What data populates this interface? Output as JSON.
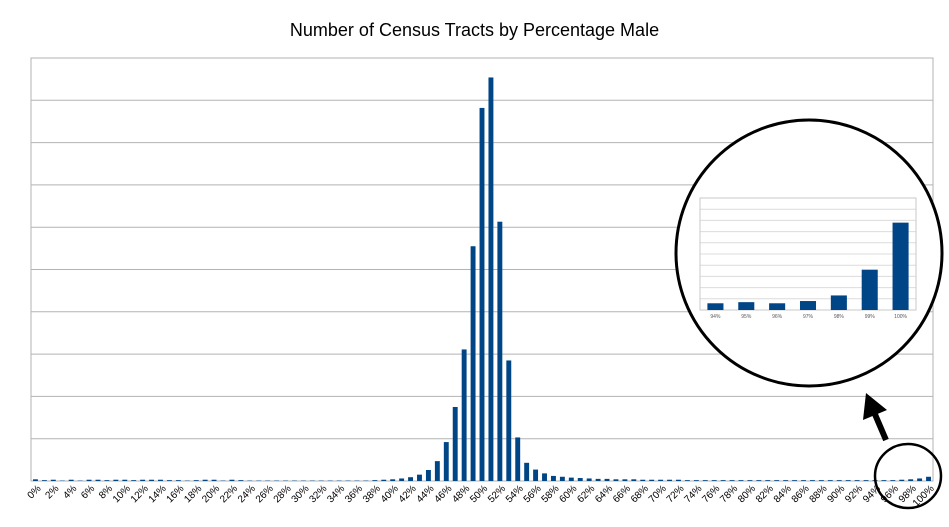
{
  "chart_data": {
    "type": "bar",
    "title": "Number of Census Tracts by Percentage Male",
    "xlabel": "",
    "ylabel": "",
    "grid": true,
    "legend": "none",
    "bar_color": "#004586",
    "ylim": [
      0,
      10
    ],
    "categories": [
      "0%",
      "1%",
      "2%",
      "3%",
      "4%",
      "5%",
      "6%",
      "7%",
      "8%",
      "9%",
      "10%",
      "11%",
      "12%",
      "13%",
      "14%",
      "15%",
      "16%",
      "17%",
      "18%",
      "19%",
      "20%",
      "21%",
      "22%",
      "23%",
      "24%",
      "25%",
      "26%",
      "27%",
      "28%",
      "29%",
      "30%",
      "31%",
      "32%",
      "33%",
      "34%",
      "35%",
      "36%",
      "37%",
      "38%",
      "39%",
      "40%",
      "41%",
      "42%",
      "43%",
      "44%",
      "45%",
      "46%",
      "47%",
      "48%",
      "49%",
      "50%",
      "51%",
      "52%",
      "53%",
      "54%",
      "55%",
      "56%",
      "57%",
      "58%",
      "59%",
      "60%",
      "61%",
      "62%",
      "63%",
      "64%",
      "65%",
      "66%",
      "67%",
      "68%",
      "69%",
      "70%",
      "71%",
      "72%",
      "73%",
      "74%",
      "75%",
      "76%",
      "77%",
      "78%",
      "79%",
      "80%",
      "81%",
      "82%",
      "83%",
      "84%",
      "85%",
      "86%",
      "87%",
      "88%",
      "89%",
      "90%",
      "91%",
      "92%",
      "93%",
      "94%",
      "95%",
      "96%",
      "97%",
      "98%",
      "99%",
      "100%"
    ],
    "tick_labels": [
      "0%",
      "2%",
      "4%",
      "6%",
      "8%",
      "10%",
      "12%",
      "14%",
      "16%",
      "18%",
      "20%",
      "22%",
      "24%",
      "26%",
      "28%",
      "30%",
      "32%",
      "34%",
      "36%",
      "38%",
      "40%",
      "42%",
      "44%",
      "46%",
      "48%",
      "50%",
      "52%",
      "54%",
      "56%",
      "58%",
      "60%",
      "62%",
      "64%",
      "66%",
      "68%",
      "70%",
      "72%",
      "74%",
      "76%",
      "78%",
      "80%",
      "82%",
      "84%",
      "86%",
      "88%",
      "90%",
      "92%",
      "94%",
      "96%",
      "98%",
      "100%"
    ],
    "values": [
      0.04,
      0.02,
      0.03,
      0.01,
      0.03,
      0.01,
      0.03,
      0.03,
      0.02,
      0.03,
      0.03,
      0.02,
      0.03,
      0.03,
      0.03,
      0.02,
      0.02,
      0.01,
      0.02,
      0.03,
      0.03,
      0.01,
      0.03,
      0.02,
      0.01,
      0.01,
      0.01,
      0.01,
      0.01,
      0.01,
      0.01,
      0.01,
      0.01,
      0.01,
      0.01,
      0.01,
      0.01,
      0.01,
      0.02,
      0.03,
      0.04,
      0.06,
      0.09,
      0.15,
      0.26,
      0.47,
      0.92,
      1.75,
      3.11,
      5.55,
      8.82,
      9.54,
      6.13,
      2.85,
      1.03,
      0.43,
      0.27,
      0.18,
      0.12,
      0.1,
      0.08,
      0.07,
      0.06,
      0.05,
      0.05,
      0.04,
      0.04,
      0.04,
      0.03,
      0.03,
      0.03,
      0.03,
      0.03,
      0.02,
      0.02,
      0.02,
      0.02,
      0.02,
      0.02,
      0.02,
      0.02,
      0.02,
      0.02,
      0.02,
      0.02,
      0.02,
      0.02,
      0.02,
      0.02,
      0.02,
      0.02,
      0.02,
      0.02,
      0.02,
      0.02,
      0.02,
      0.02,
      0.03,
      0.04,
      0.06,
      0.1
    ],
    "inset": {
      "categories": [
        "94%",
        "95%",
        "96%",
        "97%",
        "98%",
        "99%",
        "100%"
      ],
      "values": [
        0.6,
        0.7,
        0.6,
        0.8,
        1.3,
        3.6,
        7.8
      ],
      "ylim": [
        0,
        10
      ]
    }
  }
}
